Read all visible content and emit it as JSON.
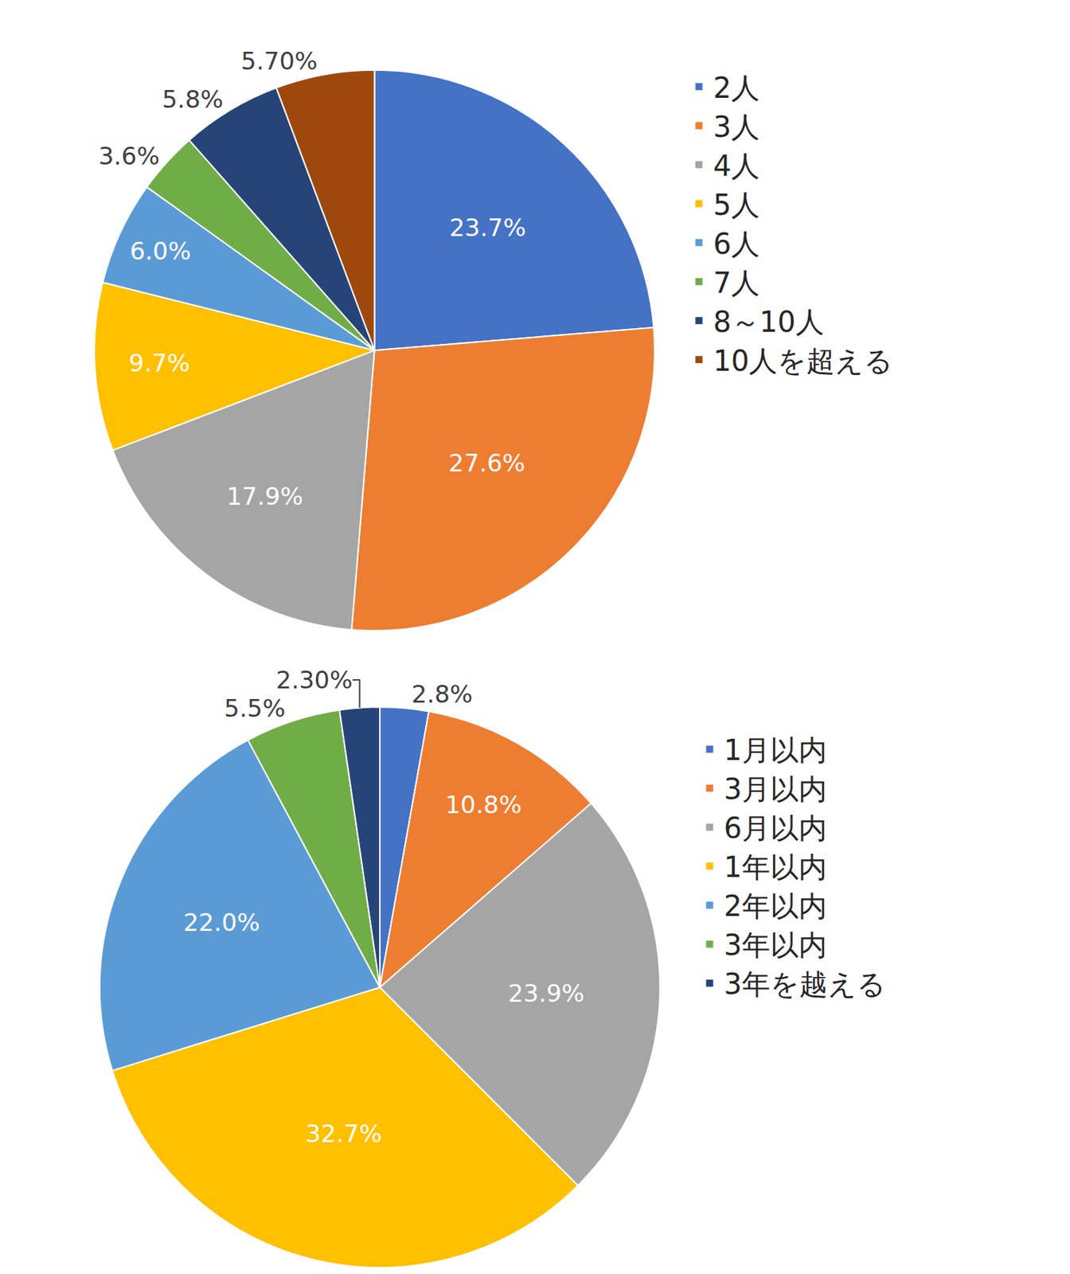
{
  "chart_data": [
    {
      "type": "pie",
      "categories": [
        "2人",
        "3人",
        "4人",
        "5人",
        "6人",
        "7人",
        "8～10人",
        "10人を超える"
      ],
      "values": [
        23.7,
        27.6,
        17.9,
        9.7,
        6.0,
        3.6,
        5.8,
        5.7
      ],
      "value_labels": [
        "23.7%",
        "27.6%",
        "17.9%",
        "9.7%",
        "6.0%",
        "3.6%",
        "5.8%",
        "5.70%"
      ],
      "colors": [
        "#4472C4",
        "#ED7D31",
        "#A5A5A5",
        "#FFC000",
        "#5B9BD5",
        "#70AD47",
        "#264478",
        "#9E480E"
      ],
      "data_labels": true,
      "legend": "right"
    },
    {
      "type": "pie",
      "categories": [
        "1月以内",
        "3月以内",
        "6月以内",
        "1年以内",
        "2年以内",
        "3年以内",
        "3年を越える"
      ],
      "values": [
        2.8,
        10.8,
        23.9,
        32.7,
        22.0,
        5.5,
        2.3
      ],
      "value_labels": [
        "2.8%",
        "10.8%",
        "23.9%",
        "32.7%",
        "22.0%",
        "5.5%",
        "2.30%"
      ],
      "colors": [
        "#4472C4",
        "#ED7D31",
        "#A5A5A5",
        "#FFC000",
        "#5B9BD5",
        "#70AD47",
        "#264478"
      ],
      "data_labels": true,
      "legend": "right"
    }
  ]
}
